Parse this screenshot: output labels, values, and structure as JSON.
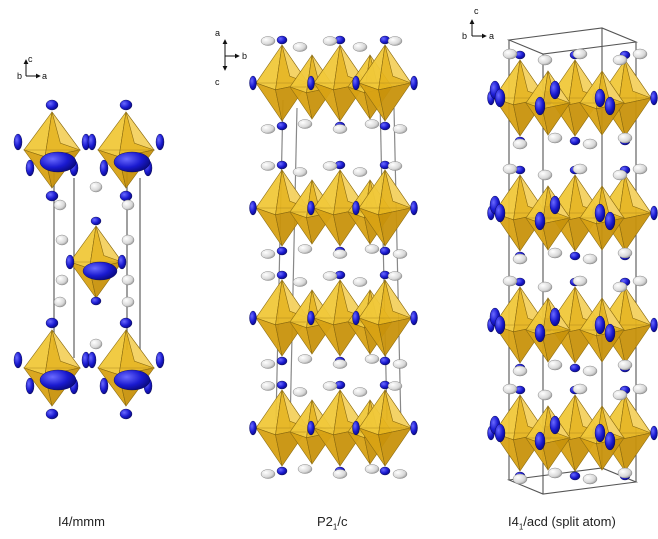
{
  "panels": [
    {
      "id": "i4mmm",
      "caption": {
        "main": "I4/mmm",
        "sub": "",
        "tail": ""
      },
      "axes": {
        "up": "c",
        "right": "a",
        "origin": "b",
        "down": ""
      }
    },
    {
      "id": "p21c",
      "caption": {
        "main": "P2",
        "sub": "1",
        "tail": "/c"
      },
      "axes": {
        "up": "a",
        "right": "b",
        "origin": "",
        "down": "c"
      }
    },
    {
      "id": "i41acd",
      "caption": {
        "main": "I4",
        "sub": "1",
        "tail": "/acd (split atom)"
      },
      "axes": {
        "up": "c",
        "right": "a",
        "origin": "b",
        "down": ""
      }
    }
  ],
  "colors": {
    "octahedron_fill": "#e8b820",
    "octahedron_edge": "#8a6a10",
    "anion_ellipsoid": "#1a1ad0",
    "cation_ellipsoid": "#dedede",
    "cell_edge": "#777777"
  }
}
